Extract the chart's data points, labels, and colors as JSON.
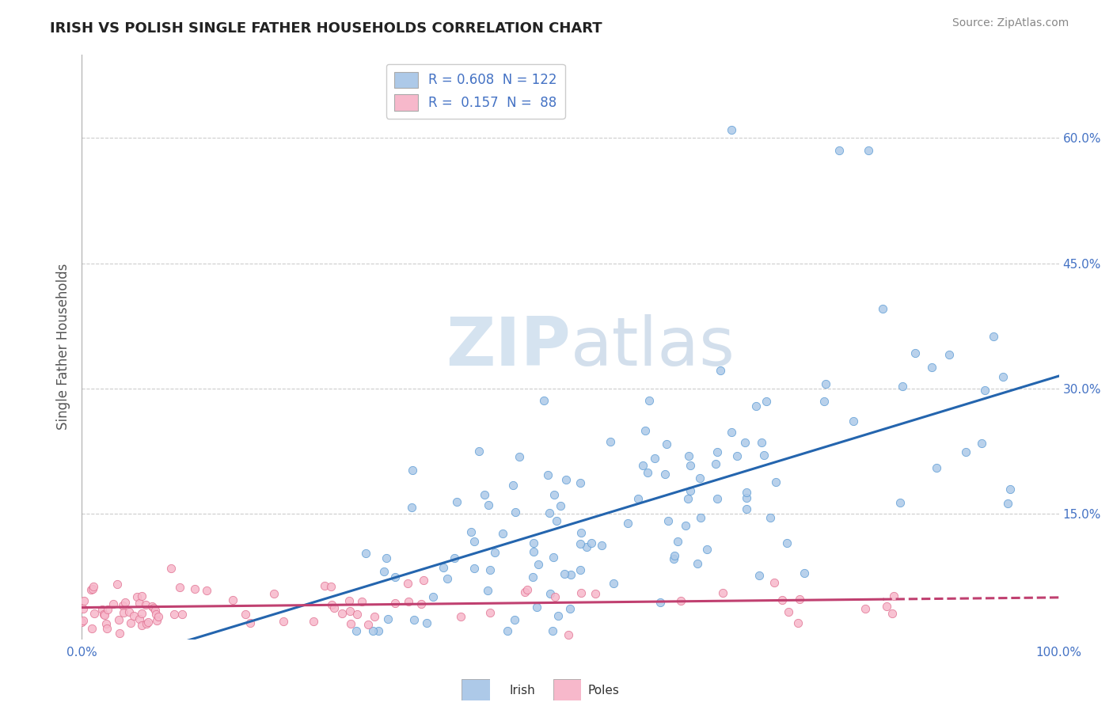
{
  "title": "IRISH VS POLISH SINGLE FATHER HOUSEHOLDS CORRELATION CHART",
  "source": "Source: ZipAtlas.com",
  "ylabel": "Single Father Households",
  "xlim": [
    0.0,
    1.0
  ],
  "ylim": [
    0.0,
    0.7
  ],
  "irish_R": 0.608,
  "irish_N": 122,
  "polish_R": 0.157,
  "polish_N": 88,
  "irish_color": "#adc9e8",
  "irish_edge_color": "#5b9bd5",
  "irish_line_color": "#2465ae",
  "polish_color": "#f7b8cb",
  "polish_edge_color": "#e07090",
  "polish_line_color": "#c04070",
  "background_color": "#ffffff",
  "grid_color": "#cccccc",
  "title_color": "#222222",
  "axis_label_color": "#555555",
  "tick_label_color": "#4472c4",
  "watermark": "ZIPAtlas",
  "watermark_color": "#d5e3f0",
  "irish_line_slope": 0.355,
  "irish_line_intercept": -0.04,
  "polish_line_slope": 0.012,
  "polish_line_intercept": 0.038
}
